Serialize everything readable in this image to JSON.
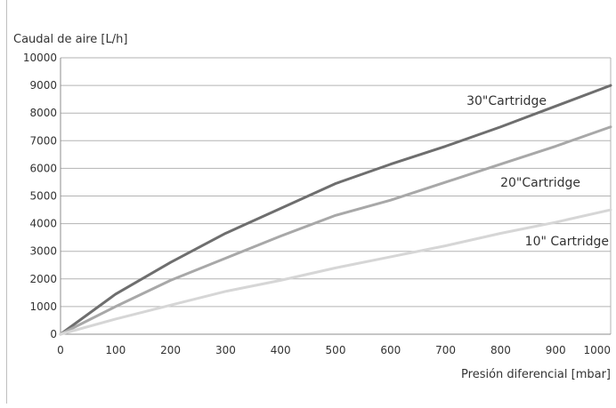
{
  "chart_data": {
    "type": "line",
    "title": "",
    "ylabel": "Caudal de aire [L/h]",
    "xlabel": "Presión diferencial [mbar]",
    "xlim": [
      0,
      1000
    ],
    "ylim": [
      0,
      10000
    ],
    "x_ticks": [
      0,
      100,
      200,
      300,
      400,
      500,
      600,
      700,
      800,
      900,
      1000
    ],
    "y_ticks": [
      0,
      1000,
      2000,
      3000,
      4000,
      5000,
      6000,
      7000,
      8000,
      9000,
      10000
    ],
    "grid": "horizontal",
    "series": [
      {
        "name": "30\"Cartridge",
        "color": "#6e6e6e",
        "points": [
          [
            0,
            0
          ],
          [
            100,
            1450
          ],
          [
            200,
            2600
          ],
          [
            300,
            3650
          ],
          [
            400,
            4550
          ],
          [
            500,
            5450
          ],
          [
            600,
            6150
          ],
          [
            700,
            6800
          ],
          [
            800,
            7500
          ],
          [
            900,
            8250
          ],
          [
            1000,
            9000
          ]
        ]
      },
      {
        "name": "20\"Cartridge",
        "color": "#a8a8a8",
        "points": [
          [
            0,
            0
          ],
          [
            100,
            1000
          ],
          [
            200,
            1950
          ],
          [
            300,
            2750
          ],
          [
            400,
            3550
          ],
          [
            500,
            4300
          ],
          [
            600,
            4850
          ],
          [
            700,
            5500
          ],
          [
            800,
            6150
          ],
          [
            900,
            6800
          ],
          [
            1000,
            7500
          ]
        ]
      },
      {
        "name": "10\" Cartridge",
        "color": "#d6d6d6",
        "points": [
          [
            0,
            0
          ],
          [
            100,
            550
          ],
          [
            200,
            1050
          ],
          [
            300,
            1550
          ],
          [
            400,
            1950
          ],
          [
            500,
            2400
          ],
          [
            600,
            2800
          ],
          [
            700,
            3200
          ],
          [
            800,
            3650
          ],
          [
            900,
            4050
          ],
          [
            1000,
            4500
          ]
        ]
      }
    ]
  }
}
